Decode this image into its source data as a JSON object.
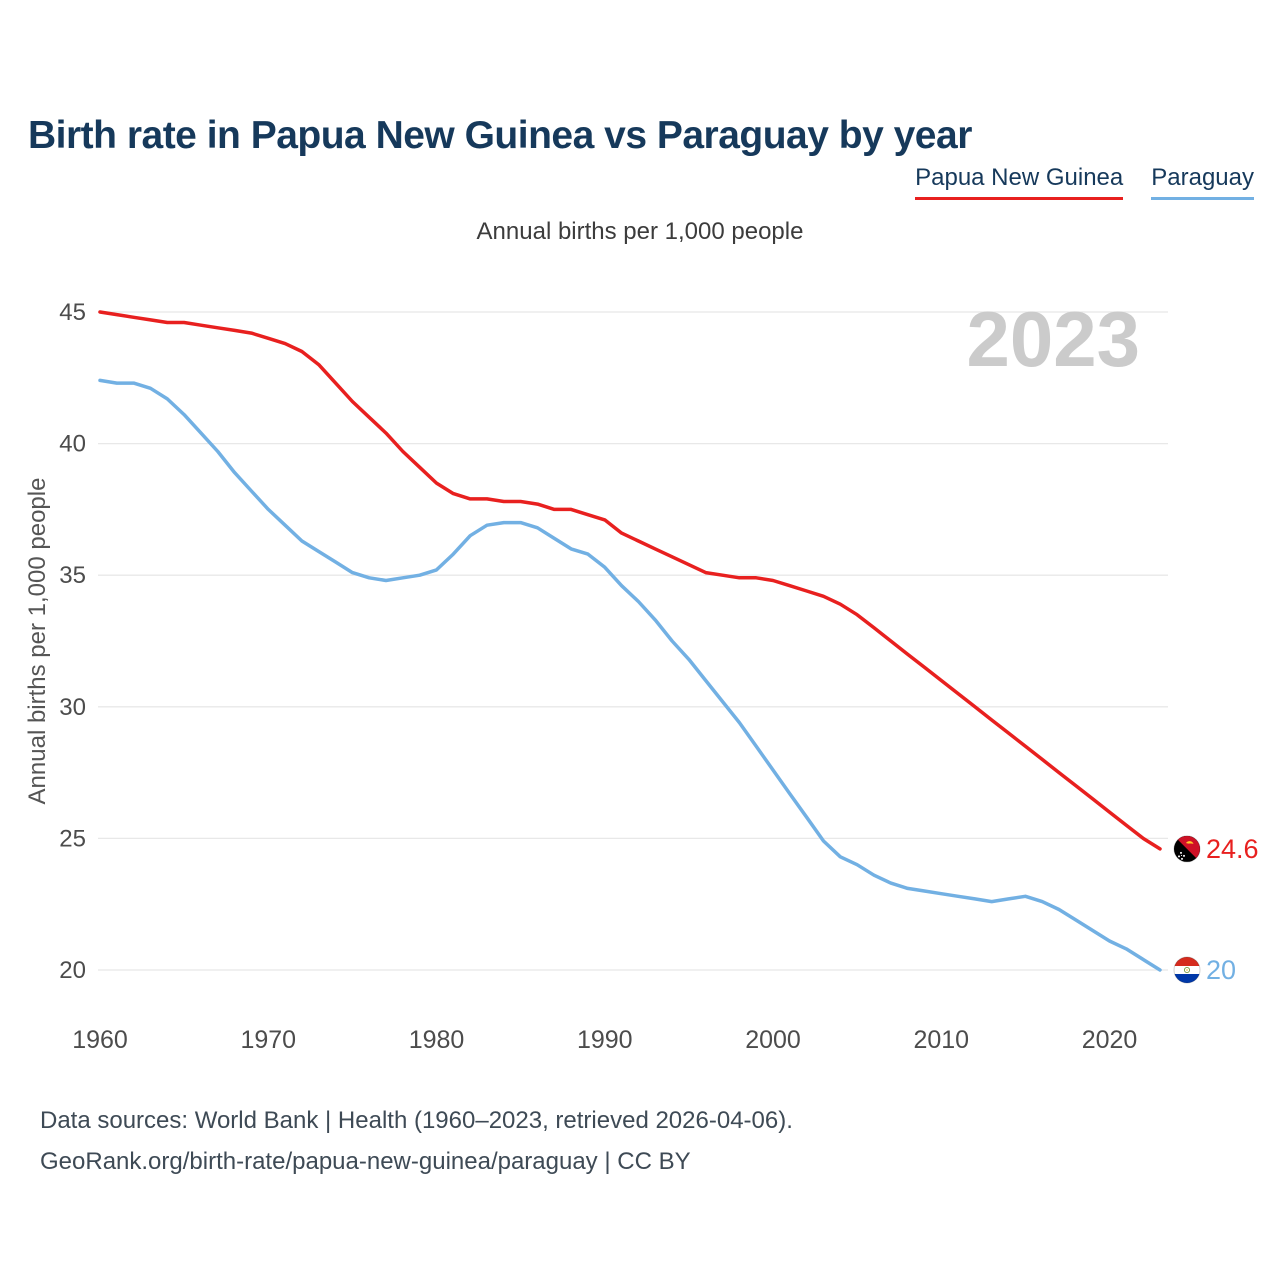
{
  "header": {
    "title": "Birth rate in Papua New Guinea vs Paraguay by year",
    "subtitle": "Annual births per 1,000 people"
  },
  "legend": [
    {
      "label": "Papua New Guinea",
      "color": "#e8201f"
    },
    {
      "label": "Paraguay",
      "color": "#72b0e3"
    }
  ],
  "watermark": "2023",
  "footer": {
    "line1": "Data sources: World Bank | Health (1960–2023, retrieved 2026-04-06).",
    "line2": "GeoRank.org/birth-rate/papua-new-guinea/paraguay | CC BY"
  },
  "chart_data": {
    "type": "line",
    "title": "Birth rate in Papua New Guinea vs Paraguay by year",
    "ylabel": "Annual births per 1,000 people",
    "grid": "horizontal",
    "legend_position": "top-right",
    "xlim": [
      1960,
      2023
    ],
    "ylim": [
      20,
      45
    ],
    "yticks": [
      20,
      25,
      30,
      35,
      40,
      45
    ],
    "xticks": [
      1960,
      1970,
      1980,
      1990,
      2000,
      2010,
      2020
    ],
    "x": [
      1960,
      1961,
      1962,
      1963,
      1964,
      1965,
      1966,
      1967,
      1968,
      1969,
      1970,
      1971,
      1972,
      1973,
      1974,
      1975,
      1976,
      1977,
      1978,
      1979,
      1980,
      1981,
      1982,
      1983,
      1984,
      1985,
      1986,
      1987,
      1988,
      1989,
      1990,
      1991,
      1992,
      1993,
      1994,
      1995,
      1996,
      1997,
      1998,
      1999,
      2000,
      2001,
      2002,
      2003,
      2004,
      2005,
      2006,
      2007,
      2008,
      2009,
      2010,
      2011,
      2012,
      2013,
      2014,
      2015,
      2016,
      2017,
      2018,
      2019,
      2020,
      2021,
      2022,
      2023
    ],
    "series": [
      {
        "name": "Papua New Guinea",
        "color": "#e8201f",
        "end_label": "24.6",
        "flag": "papua-new-guinea-flag-icon",
        "values": [
          45.0,
          44.9,
          44.8,
          44.7,
          44.6,
          44.6,
          44.5,
          44.4,
          44.3,
          44.2,
          44.0,
          43.8,
          43.5,
          43.0,
          42.3,
          41.6,
          41.0,
          40.4,
          39.7,
          39.1,
          38.5,
          38.1,
          37.9,
          37.9,
          37.8,
          37.8,
          37.7,
          37.5,
          37.5,
          37.3,
          37.1,
          36.6,
          36.3,
          36.0,
          35.7,
          35.4,
          35.1,
          35.0,
          34.9,
          34.9,
          34.8,
          34.6,
          34.4,
          34.2,
          33.9,
          33.5,
          33.0,
          32.5,
          32.0,
          31.5,
          31.0,
          30.5,
          30.0,
          29.5,
          29.0,
          28.5,
          28.0,
          27.5,
          27.0,
          26.5,
          26.0,
          25.5,
          25.0,
          24.6
        ]
      },
      {
        "name": "Paraguay",
        "color": "#72b0e3",
        "end_label": "20",
        "flag": "paraguay-flag-icon",
        "values": [
          42.4,
          42.3,
          42.3,
          42.1,
          41.7,
          41.1,
          40.4,
          39.7,
          38.9,
          38.2,
          37.5,
          36.9,
          36.3,
          35.9,
          35.5,
          35.1,
          34.9,
          34.8,
          34.9,
          35.0,
          35.2,
          35.8,
          36.5,
          36.9,
          37.0,
          37.0,
          36.8,
          36.4,
          36.0,
          35.8,
          35.3,
          34.6,
          34.0,
          33.3,
          32.5,
          31.8,
          31.0,
          30.2,
          29.4,
          28.5,
          27.6,
          26.7,
          25.8,
          24.9,
          24.3,
          24.0,
          23.6,
          23.3,
          23.1,
          23.0,
          22.9,
          22.8,
          22.7,
          22.6,
          22.7,
          22.8,
          22.6,
          22.3,
          21.9,
          21.5,
          21.1,
          20.8,
          20.4,
          20.0
        ]
      }
    ]
  }
}
